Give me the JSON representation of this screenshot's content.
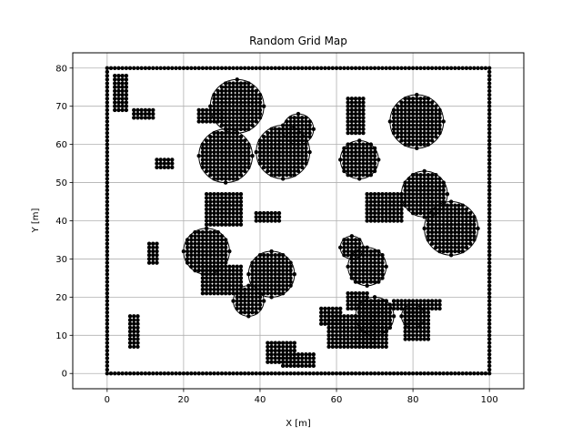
{
  "chart_data": {
    "type": "scatter",
    "title": "Random Grid Map",
    "xlabel": "X [m]",
    "ylabel": "Y [m]",
    "xlim": [
      -9,
      109
    ],
    "ylim": [
      -4,
      84
    ],
    "xticks": [
      0,
      20,
      40,
      60,
      80,
      100
    ],
    "yticks": [
      0,
      10,
      20,
      30,
      40,
      50,
      60,
      70,
      80
    ],
    "grid": true,
    "marker_color": "#000000",
    "grid_color": "#b0b0b0",
    "boundary": {
      "x0": 0,
      "y0": 0,
      "x1": 100,
      "y1": 80
    },
    "rect_obstacles": [
      {
        "x": [
          2,
          5
        ],
        "y": [
          69,
          78
        ]
      },
      {
        "x": [
          7,
          12
        ],
        "y": [
          67,
          69
        ]
      },
      {
        "x": [
          13,
          17
        ],
        "y": [
          54,
          56
        ]
      },
      {
        "x": [
          24,
          30
        ],
        "y": [
          66,
          69
        ]
      },
      {
        "x": [
          26,
          35
        ],
        "y": [
          39,
          47
        ]
      },
      {
        "x": [
          39,
          45
        ],
        "y": [
          40,
          42
        ]
      },
      {
        "x": [
          11,
          13
        ],
        "y": [
          29,
          34
        ]
      },
      {
        "x": [
          6,
          8
        ],
        "y": [
          7,
          15
        ]
      },
      {
        "x": [
          25,
          35
        ],
        "y": [
          21,
          28
        ]
      },
      {
        "x": [
          42,
          49
        ],
        "y": [
          3,
          8
        ]
      },
      {
        "x": [
          46,
          54
        ],
        "y": [
          2,
          5
        ]
      },
      {
        "x": [
          56,
          61
        ],
        "y": [
          13,
          17
        ]
      },
      {
        "x": [
          58,
          70
        ],
        "y": [
          7,
          15
        ]
      },
      {
        "x": [
          63,
          68
        ],
        "y": [
          17,
          21
        ]
      },
      {
        "x": [
          63,
          67
        ],
        "y": [
          63,
          72
        ]
      },
      {
        "x": [
          68,
          77
        ],
        "y": [
          40,
          47
        ]
      },
      {
        "x": [
          66,
          73
        ],
        "y": [
          7,
          19
        ]
      },
      {
        "x": [
          75,
          87
        ],
        "y": [
          17,
          19
        ]
      },
      {
        "x": [
          78,
          84
        ],
        "y": [
          9,
          17
        ]
      }
    ],
    "circle_obstacles": [
      {
        "cx": 34,
        "cy": 70,
        "r": 7
      },
      {
        "cx": 31,
        "cy": 57,
        "r": 7
      },
      {
        "cx": 46,
        "cy": 58,
        "r": 7
      },
      {
        "cx": 50,
        "cy": 64,
        "r": 4
      },
      {
        "cx": 66,
        "cy": 56,
        "r": 5
      },
      {
        "cx": 81,
        "cy": 66,
        "r": 7
      },
      {
        "cx": 83,
        "cy": 47,
        "r": 6
      },
      {
        "cx": 90,
        "cy": 38,
        "r": 7
      },
      {
        "cx": 26,
        "cy": 32,
        "r": 6
      },
      {
        "cx": 43,
        "cy": 26,
        "r": 6
      },
      {
        "cx": 37,
        "cy": 19,
        "r": 4
      },
      {
        "cx": 64,
        "cy": 33,
        "r": 3
      },
      {
        "cx": 68,
        "cy": 28,
        "r": 5
      },
      {
        "cx": 70,
        "cy": 15,
        "r": 5
      },
      {
        "cx": 80,
        "cy": 15,
        "r": 3
      }
    ]
  }
}
